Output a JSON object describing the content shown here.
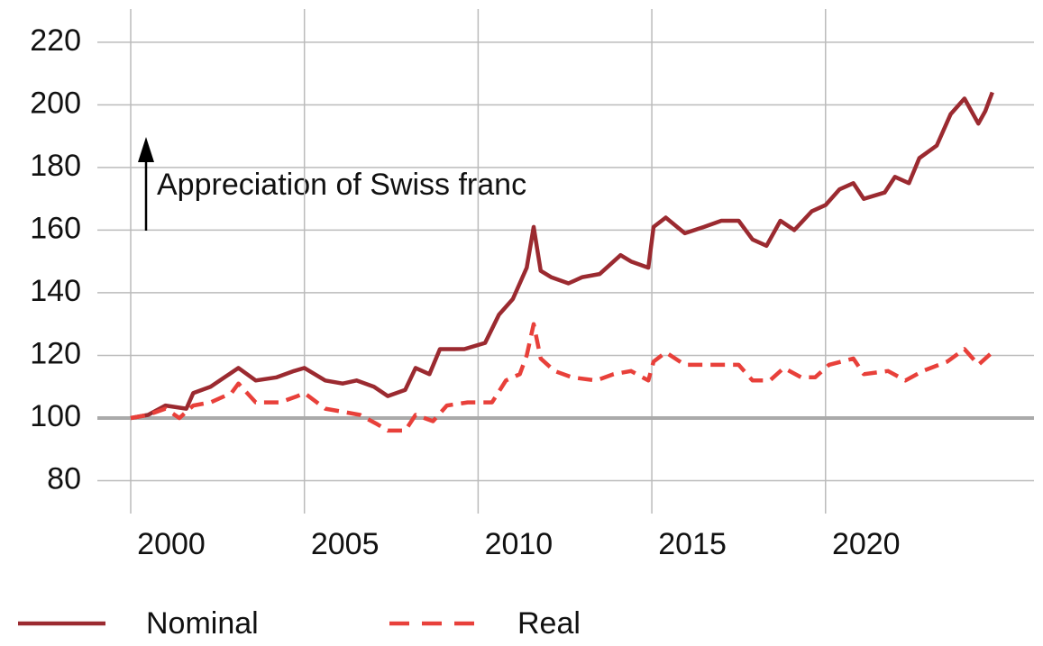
{
  "chart_data": {
    "type": "line",
    "xlim": [
      1999.04,
      2026.0
    ],
    "xticks": [
      2000,
      2005,
      2010,
      2015,
      2020
    ],
    "ylim": [
      69.5,
      230.6
    ],
    "yticks": [
      80,
      100,
      120,
      140,
      160,
      180,
      200,
      220
    ],
    "grid": true,
    "hline": 100,
    "annotation": "Appreciation of Swiss franc",
    "legend": "bottom",
    "series": [
      {
        "name": "Nominal",
        "color": "#9b2a30",
        "dash": false,
        "x": [
          2000.0,
          2000.5,
          2001.0,
          2001.6,
          2001.8,
          2002.3,
          2002.7,
          2003.1,
          2003.6,
          2004.2,
          2004.7,
          2005.0,
          2005.6,
          2006.1,
          2006.5,
          2007.0,
          2007.4,
          2007.9,
          2008.2,
          2008.6,
          2008.9,
          2009.6,
          2010.2,
          2010.6,
          2011.0,
          2011.4,
          2011.6,
          2011.8,
          2012.1,
          2012.6,
          2013.0,
          2013.5,
          2014.1,
          2014.4,
          2014.9,
          2015.05,
          2015.4,
          2015.95,
          2016.5,
          2017.0,
          2017.5,
          2017.9,
          2018.3,
          2018.7,
          2019.1,
          2019.6,
          2020.0,
          2020.4,
          2020.8,
          2021.1,
          2021.7,
          2022.0,
          2022.4,
          2022.7,
          2023.2,
          2023.6,
          2024.0,
          2024.4,
          2024.6,
          2024.8
        ],
        "values": [
          100,
          101,
          104,
          103,
          108,
          110,
          113,
          116,
          112,
          113,
          115,
          116,
          112,
          111,
          112,
          110,
          107,
          109,
          116,
          114,
          122,
          122,
          124,
          133,
          138,
          148,
          161,
          147,
          145,
          143,
          145,
          146,
          152,
          150,
          148,
          161,
          164,
          159,
          161,
          163,
          163,
          157,
          155,
          163,
          160,
          166,
          168,
          173,
          175,
          170,
          172,
          177,
          175,
          183,
          187,
          197,
          202,
          194,
          198,
          204
        ]
      },
      {
        "name": "Real",
        "color": "#e8403a",
        "dash": true,
        "x": [
          2000.0,
          2000.5,
          2001.0,
          2001.4,
          2001.8,
          2002.3,
          2002.9,
          2003.1,
          2003.6,
          2004.3,
          2004.8,
          2005.0,
          2005.6,
          2006.1,
          2006.6,
          2007.1,
          2007.4,
          2007.9,
          2008.2,
          2008.7,
          2009.1,
          2009.7,
          2010.4,
          2010.8,
          2011.2,
          2011.4,
          2011.6,
          2011.8,
          2012.2,
          2012.7,
          2013.4,
          2013.9,
          2014.4,
          2014.9,
          2015.05,
          2015.4,
          2015.95,
          2016.7,
          2017.5,
          2017.9,
          2018.4,
          2018.8,
          2019.3,
          2019.7,
          2020.1,
          2020.8,
          2021.1,
          2021.8,
          2022.3,
          2022.8,
          2023.5,
          2024.0,
          2024.4,
          2024.8
        ],
        "values": [
          100,
          101,
          103,
          100,
          104,
          105,
          108,
          111,
          105,
          105,
          107,
          108,
          103,
          102,
          101,
          98,
          96,
          96,
          101,
          99,
          104,
          105,
          105,
          112,
          114,
          120,
          130,
          119,
          115,
          113,
          112,
          114,
          115,
          112,
          118,
          121,
          117,
          117,
          117,
          112,
          112,
          116,
          113,
          113,
          117,
          119,
          114,
          115,
          112,
          115,
          118,
          122,
          117,
          121
        ]
      }
    ]
  }
}
